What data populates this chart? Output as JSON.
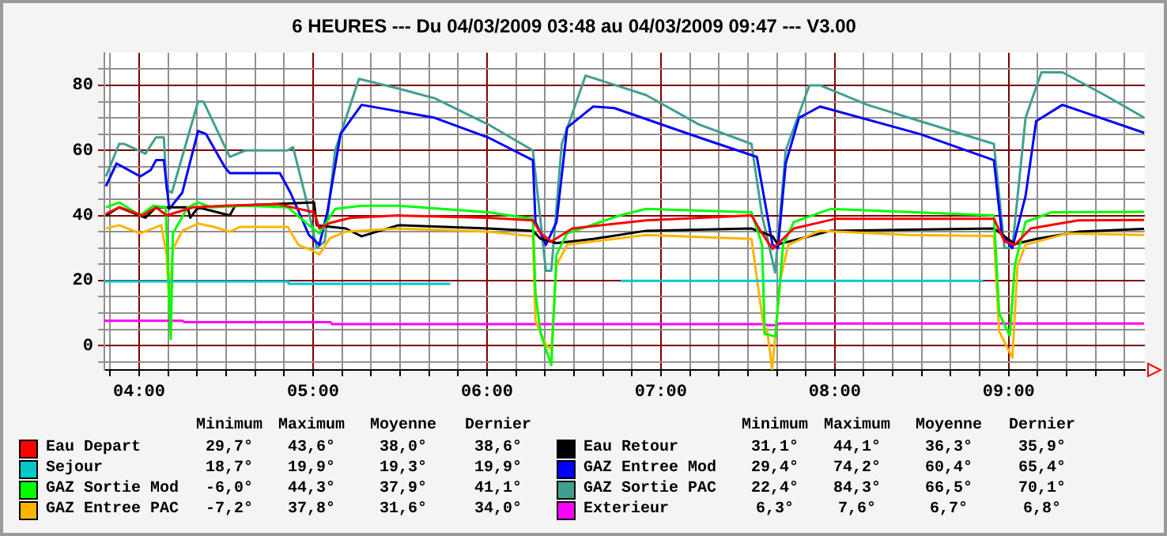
{
  "chart_data": {
    "type": "line",
    "title": "6 HEURES --- Du 04/03/2009 03:48 au 04/03/2009 09:47 --- V3.00",
    "marker": "none",
    "grid": true,
    "legend": "bottom",
    "xlim": [
      3.8,
      9.783
    ],
    "xticks": [
      {
        "value": 3.8333,
        "label": null
      },
      {
        "value": 4,
        "label": "04:00"
      },
      {
        "value": 4.1667,
        "label": null
      },
      {
        "value": 4.3333,
        "label": null
      },
      {
        "value": 4.5,
        "label": null
      },
      {
        "value": 4.6667,
        "label": null
      },
      {
        "value": 4.8333,
        "label": null
      },
      {
        "value": 5,
        "label": "05:00"
      },
      {
        "value": 5.1667,
        "label": null
      },
      {
        "value": 5.3333,
        "label": null
      },
      {
        "value": 5.5,
        "label": null
      },
      {
        "value": 5.6667,
        "label": null
      },
      {
        "value": 5.8333,
        "label": null
      },
      {
        "value": 6,
        "label": "06:00"
      },
      {
        "value": 6.1667,
        "label": null
      },
      {
        "value": 6.3333,
        "label": null
      },
      {
        "value": 6.5,
        "label": null
      },
      {
        "value": 6.6667,
        "label": null
      },
      {
        "value": 6.8333,
        "label": null
      },
      {
        "value": 7,
        "label": "07:00"
      },
      {
        "value": 7.1667,
        "label": null
      },
      {
        "value": 7.3333,
        "label": null
      },
      {
        "value": 7.5,
        "label": null
      },
      {
        "value": 7.6667,
        "label": null
      },
      {
        "value": 7.8333,
        "label": null
      },
      {
        "value": 8,
        "label": "08:00"
      },
      {
        "value": 8.1667,
        "label": null
      },
      {
        "value": 8.3333,
        "label": null
      },
      {
        "value": 8.5,
        "label": null
      },
      {
        "value": 8.6667,
        "label": null
      },
      {
        "value": 8.8333,
        "label": null
      },
      {
        "value": 9,
        "label": "09:00"
      },
      {
        "value": 9.1667,
        "label": null
      },
      {
        "value": 9.3333,
        "label": null
      },
      {
        "value": 9.5,
        "label": null
      },
      {
        "value": 9.6667,
        "label": null
      }
    ],
    "ylim": [
      -7.5,
      90
    ],
    "yticks": [
      {
        "value": -5,
        "label": null
      },
      0,
      {
        "value": 5,
        "label": null
      },
      {
        "value": 10,
        "label": null
      },
      {
        "value": 15,
        "label": null
      },
      20,
      {
        "value": 25,
        "label": null
      },
      {
        "value": 30,
        "label": null
      },
      {
        "value": 35,
        "label": null
      },
      40,
      {
        "value": 45,
        "label": null
      },
      {
        "value": 50,
        "label": null
      },
      {
        "value": 55,
        "label": null
      },
      60,
      {
        "value": 65,
        "label": null
      },
      {
        "value": 70,
        "label": null
      },
      {
        "value": 75,
        "label": null
      },
      80,
      {
        "value": 85,
        "label": null
      }
    ],
    "annotations": [
      "Minimum",
      "Maximum",
      "Moyenne",
      "Dernier",
      "29,7°",
      "43,6°",
      "38,0°",
      "38,6°",
      "18,7°",
      "19,9°",
      "19,3°",
      "19,9°",
      "-6,0°",
      "44,3°",
      "37,9°",
      "41,1°",
      "-7,2°",
      "37,8°",
      "31,6°",
      "34,0°",
      "31,1°",
      "44,1°",
      "36,3°",
      "35,9°",
      "29,4°",
      "74,2°",
      "60,4°",
      "65,4°",
      "22,4°",
      "84,3°",
      "66,5°",
      "70,1°",
      "6,3°",
      "7,6°",
      "6,7°",
      "6,8°"
    ],
    "series": [
      {
        "name": "Eau Depart",
        "color": "#ff0000",
        "x": [
          3.809,
          3.885,
          4.021,
          4.097,
          4.158,
          4.309,
          4.491,
          4.794,
          5.006,
          5.036,
          5.097,
          5.218,
          5.491,
          6.006,
          6.264,
          6.309,
          6.37,
          6.491,
          6.915,
          7.521,
          7.582,
          7.642,
          7.764,
          8.006,
          8.915,
          8.976,
          9.036,
          9.127,
          9.4,
          9.779
        ],
        "values": [
          40.5,
          42.5,
          40,
          42.5,
          40,
          42.5,
          43,
          43.5,
          41,
          36,
          37.7,
          39.3,
          40,
          39.3,
          38.5,
          34.5,
          32,
          36,
          38.5,
          40,
          34.5,
          29.7,
          36,
          39,
          39,
          32,
          31,
          36,
          38.5,
          38.6
        ]
      },
      {
        "name": "Sejour",
        "color": "#00c8c8",
        "x": [
          3.8,
          4.855,
          4.86,
          5.79,
          5.8,
          6.77,
          8.855
        ],
        "values": [
          19.7,
          19.7,
          19.0,
          19.0,
          null,
          19.9,
          19.9
        ]
      },
      {
        "name": "GAZ Sortie Mod",
        "color": "#00ff00",
        "x": [
          3.809,
          3.885,
          4.006,
          4.082,
          4.152,
          4.164,
          4.182,
          4.194,
          4.279,
          4.339,
          4.415,
          4.612,
          4.855,
          4.976,
          5.036,
          5.127,
          5.279,
          5.491,
          6.006,
          6.264,
          6.279,
          6.309,
          6.37,
          6.4,
          6.461,
          6.764,
          6.915,
          7.521,
          7.582,
          7.597,
          7.658,
          7.703,
          7.764,
          7.976,
          8.915,
          8.945,
          9.006,
          9.036,
          9.097,
          9.248,
          9.779
        ],
        "values": [
          42.5,
          44,
          40,
          43,
          42.5,
          28,
          2,
          34.5,
          42.5,
          44,
          42.5,
          43,
          42.5,
          37,
          34.5,
          42,
          43,
          43,
          41,
          39,
          16,
          3.6,
          -6,
          28,
          34.5,
          40,
          42,
          41,
          31,
          3.6,
          2.8,
          31,
          38,
          42,
          40,
          10,
          3,
          25,
          38,
          41,
          41.1
        ]
      },
      {
        "name": "GAZ Entree PAC",
        "color": "#ffb400",
        "x": [
          3.809,
          3.885,
          4.006,
          4.127,
          4.158,
          4.173,
          4.194,
          4.248,
          4.339,
          4.43,
          4.521,
          4.582,
          4.855,
          4.915,
          5.006,
          5.036,
          5.097,
          5.188,
          5.491,
          6.006,
          6.264,
          6.279,
          6.339,
          6.37,
          6.4,
          6.461,
          6.915,
          7.521,
          7.567,
          7.597,
          7.61,
          7.64,
          7.688,
          7.733,
          7.915,
          8.43,
          8.915,
          8.945,
          9.021,
          9.051,
          9.097,
          9.339,
          9.779
        ],
        "values": [
          36,
          37,
          34.5,
          37,
          28,
          13,
          29.6,
          35.3,
          37.5,
          36.5,
          35,
          36.5,
          36.5,
          31,
          29,
          28,
          33,
          35,
          36,
          35,
          33.6,
          7.6,
          0.3,
          -1.3,
          24.7,
          31,
          34,
          32.8,
          15,
          3.6,
          5.2,
          -7.2,
          20.6,
          31,
          35.3,
          34,
          33.7,
          4.4,
          -3.7,
          24.7,
          31,
          34.5,
          34.0
        ]
      },
      {
        "name": "Eau Retour",
        "color": "#000000",
        "x": [
          3.809,
          3.885,
          4.036,
          4.097,
          4.279,
          4.294,
          4.339,
          4.521,
          4.552,
          5.006,
          5.021,
          5.188,
          5.279,
          5.491,
          6.006,
          6.264,
          6.309,
          6.4,
          6.612,
          6.915,
          7.521,
          7.642,
          7.673,
          7.976,
          8.915,
          8.976,
          9.036,
          9.158,
          9.4,
          9.779
        ],
        "values": [
          40,
          42.5,
          39.3,
          42.5,
          42.5,
          39.3,
          42.5,
          40,
          43,
          44,
          37,
          36,
          33.6,
          37,
          36,
          35.3,
          32.8,
          31.5,
          32.8,
          35.3,
          36,
          33.6,
          31.1,
          35.3,
          36,
          33.6,
          31.2,
          32.8,
          35,
          35.9
        ]
      },
      {
        "name": "GAZ Entree Mod",
        "color": "#0000ff",
        "x": [
          3.809,
          3.87,
          4.006,
          4.067,
          4.097,
          4.142,
          4.173,
          4.248,
          4.339,
          4.385,
          4.491,
          4.521,
          4.809,
          4.87,
          4.976,
          5.036,
          5.082,
          5.158,
          5.279,
          5.491,
          5.7,
          6.006,
          6.264,
          6.279,
          6.339,
          6.4,
          6.461,
          6.612,
          6.733,
          7.218,
          7.552,
          7.582,
          7.642,
          7.673,
          7.718,
          7.794,
          7.915,
          8.491,
          8.915,
          8.961,
          9.021,
          9.097,
          9.158,
          9.309,
          9.779
        ],
        "values": [
          49,
          56,
          52,
          54,
          57,
          57,
          42,
          47,
          66,
          65,
          55,
          53,
          53,
          47,
          34,
          31,
          41,
          65,
          74,
          72,
          70,
          64,
          57,
          38,
          31,
          38,
          67,
          73.5,
          73,
          64,
          58,
          49,
          31,
          30,
          56,
          70,
          73.5,
          65,
          57,
          34,
          30,
          46,
          69,
          74,
          65.4
        ]
      },
      {
        "name": "GAZ Sortie PAC",
        "color": "#40a090",
        "x": [
          3.809,
          3.885,
          3.915,
          4.036,
          4.097,
          4.142,
          4.158,
          4.188,
          4.339,
          4.37,
          4.521,
          4.612,
          4.855,
          4.885,
          4.96,
          5.021,
          5.067,
          5.127,
          5.264,
          5.491,
          5.7,
          6.006,
          6.264,
          6.339,
          6.37,
          6.43,
          6.567,
          6.915,
          7.218,
          7.521,
          7.582,
          7.657,
          7.718,
          7.854,
          7.915,
          8.188,
          8.491,
          8.915,
          8.976,
          9.021,
          9.097,
          9.188,
          9.309,
          9.552,
          9.779
        ],
        "values": [
          52,
          62,
          62,
          59,
          64,
          64,
          48,
          47,
          75,
          75,
          58,
          60,
          60,
          61,
          45,
          30,
          32,
          60,
          82,
          79,
          76,
          68,
          60,
          23,
          23,
          62,
          83,
          77,
          68,
          62,
          40,
          22.5,
          60,
          80,
          80,
          74,
          69,
          62,
          30,
          30,
          70,
          84,
          84,
          77,
          70.1
        ]
      },
      {
        "name": "Exterieur",
        "color": "#ff00ff",
        "x": [
          3.8,
          4.25,
          4.26,
          5.1,
          5.11,
          7.6,
          7.61,
          7.67,
          7.68,
          9.779
        ],
        "values": [
          7.6,
          7.6,
          7.2,
          7.2,
          6.6,
          6.6,
          6.3,
          6.3,
          6.8,
          6.8
        ]
      }
    ]
  }
}
